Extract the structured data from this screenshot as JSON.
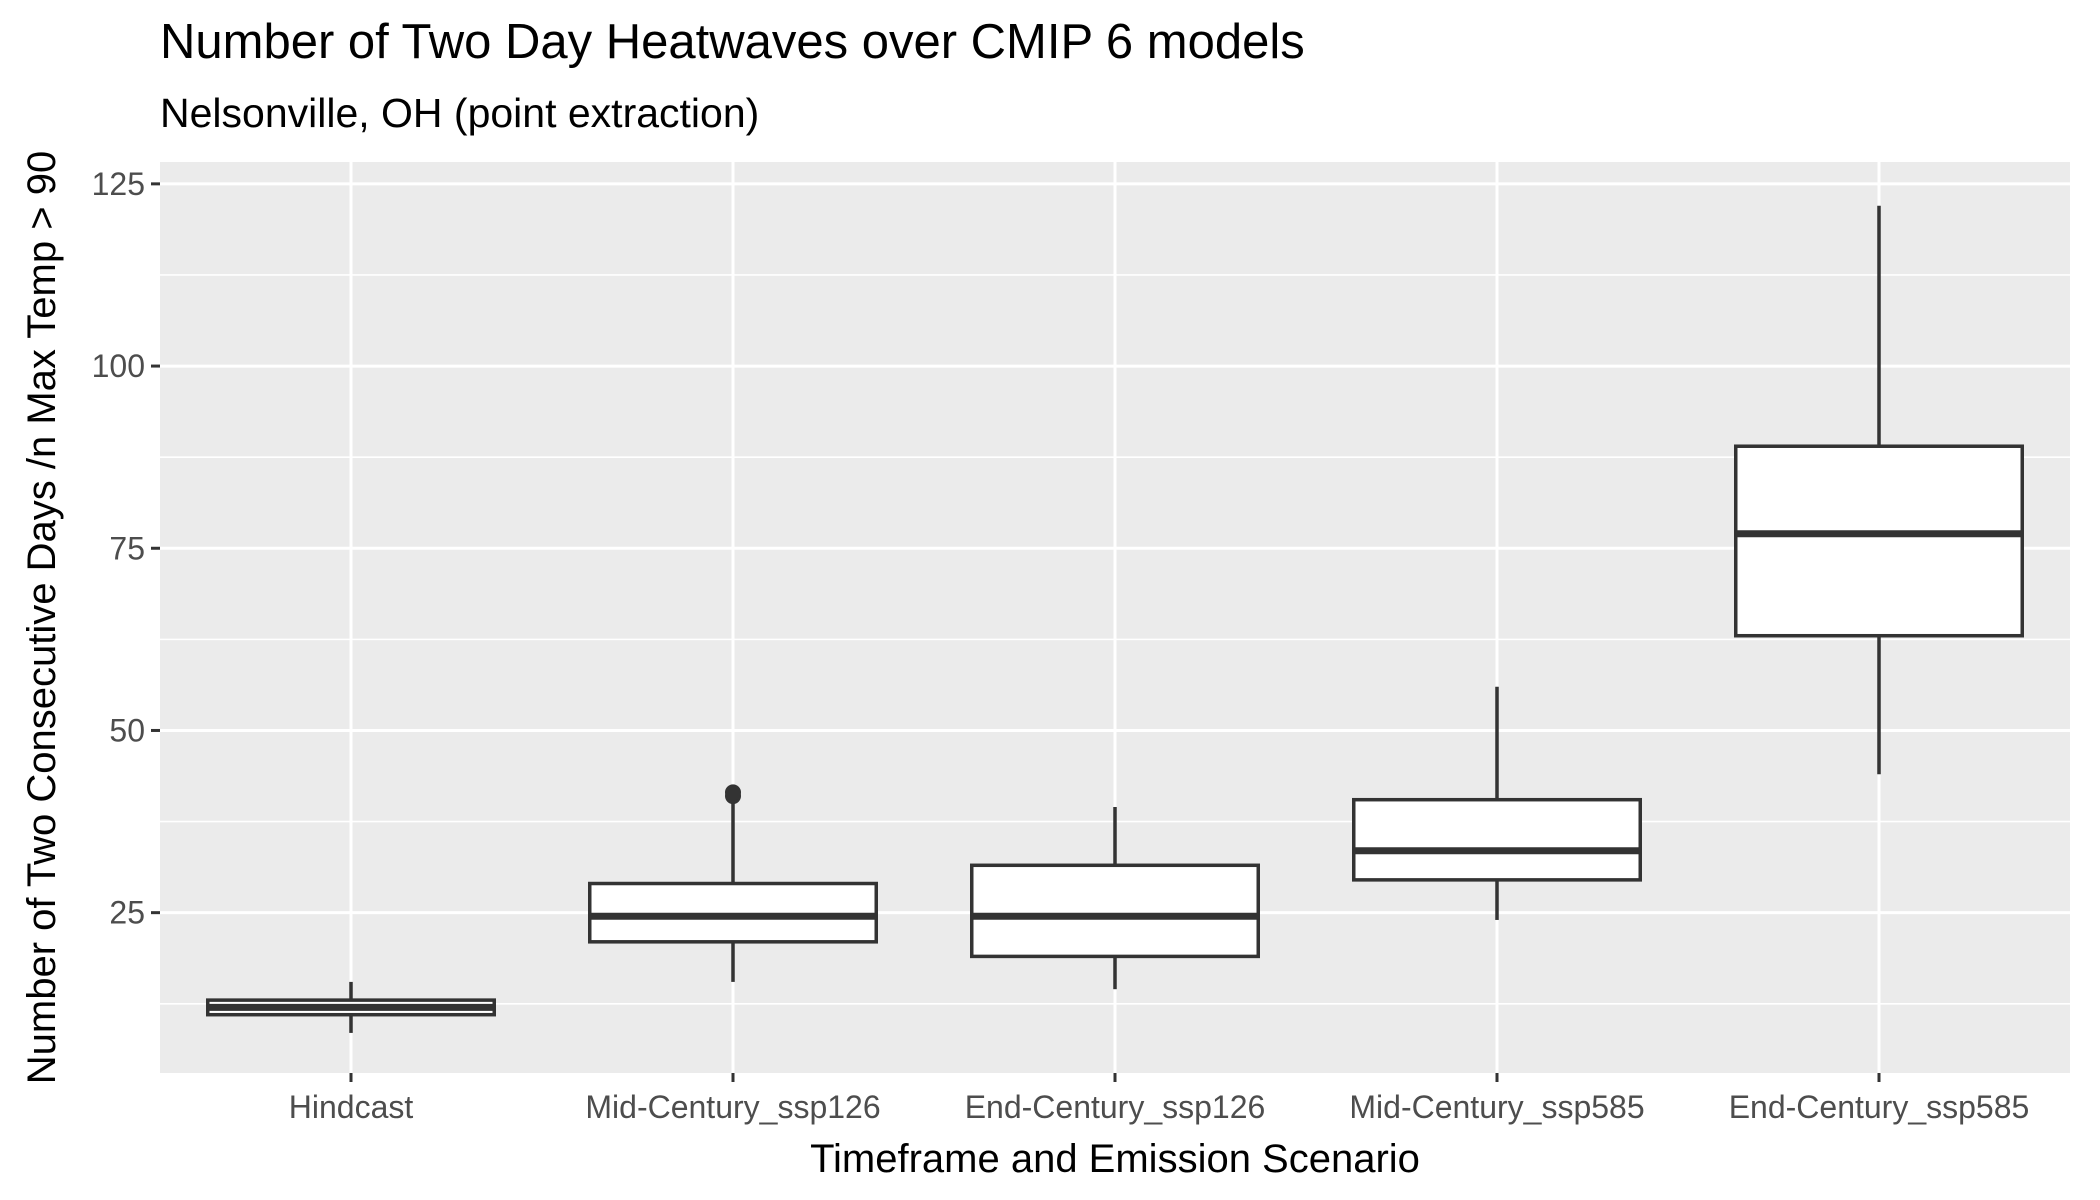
{
  "chart_data": {
    "type": "boxplot",
    "title": "Number of Two Day Heatwaves over CMIP 6 models",
    "subtitle": "Nelsonville, OH (point extraction)",
    "xlabel": "Timeframe and Emission Scenario",
    "ylabel": "Number of Two Consecutive Days /n Max Temp > 90",
    "categories": [
      "Hindcast",
      "Mid-Century_ssp126",
      "End-Century_ssp126",
      "Mid-Century_ssp585",
      "End-Century_ssp585"
    ],
    "y_ticks": [
      25,
      50,
      75,
      100,
      125
    ],
    "ylim": [
      3,
      128
    ],
    "grid": true,
    "boxes": [
      {
        "category": "Hindcast",
        "whisker_low": 8.5,
        "q1": 11,
        "median": 12,
        "q3": 13,
        "whisker_high": 15.5,
        "outliers": []
      },
      {
        "category": "Mid-Century_ssp126",
        "whisker_low": 15.5,
        "q1": 21,
        "median": 24.5,
        "q3": 29,
        "whisker_high": 41,
        "outliers": [
          41,
          41.5
        ]
      },
      {
        "category": "End-Century_ssp126",
        "whisker_low": 14.5,
        "q1": 19,
        "median": 24.5,
        "q3": 31.5,
        "whisker_high": 39.5,
        "outliers": []
      },
      {
        "category": "Mid-Century_ssp585",
        "whisker_low": 24,
        "q1": 29.5,
        "median": 33.5,
        "q3": 40.5,
        "whisker_high": 56,
        "outliers": []
      },
      {
        "category": "End-Century_ssp585",
        "whisker_low": 44,
        "q1": 63,
        "median": 77,
        "q3": 89,
        "whisker_high": 122,
        "outliers": []
      }
    ],
    "colors": {
      "panel_background": "#ebebeb",
      "grid": "#ffffff",
      "box_fill": "#ffffff",
      "box_stroke": "#333333"
    }
  }
}
